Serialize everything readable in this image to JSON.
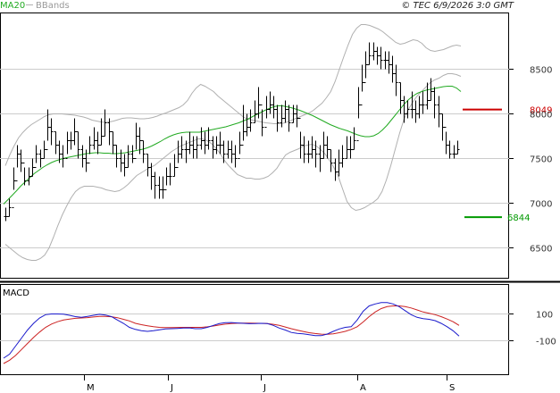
{
  "header": {
    "legend_ma": "MA20",
    "legend_bb": "BBands",
    "copyright": "© TEC 6/9/2026 3:0 GMT"
  },
  "macd_panel": {
    "label": "MACD"
  },
  "colors": {
    "price": "#000000",
    "ma20": "#22aa22",
    "bbands": "#b0b0b0",
    "resistance": "#cc0000",
    "support": "#009900",
    "macd_line": "#1a1acc",
    "signal_line": "#cc2222",
    "grid": "#cccccc",
    "border": "#000000"
  },
  "chart_data": [
    {
      "type": "line",
      "panel": "price",
      "y_ticks": [
        6500,
        7000,
        7500,
        8000,
        8500
      ],
      "x_ticks": [
        "M",
        "J",
        "J",
        "A",
        "S"
      ],
      "levels": [
        {
          "name": "resistance",
          "value": 8049,
          "label": "8049"
        },
        {
          "name": "support",
          "value": 6844,
          "label": "6844"
        }
      ],
      "series": [
        {
          "name": "MA20",
          "values": [
            6990,
            7040,
            7090,
            7140,
            7195,
            7240,
            7285,
            7330,
            7365,
            7400,
            7430,
            7455,
            7475,
            7490,
            7505,
            7515,
            7525,
            7535,
            7545,
            7555,
            7560,
            7565,
            7565,
            7560,
            7560,
            7555,
            7555,
            7560,
            7565,
            7575,
            7585,
            7595,
            7605,
            7620,
            7640,
            7665,
            7690,
            7720,
            7745,
            7765,
            7780,
            7790,
            7795,
            7795,
            7795,
            7795,
            7805,
            7815,
            7825,
            7835,
            7845,
            7855,
            7870,
            7885,
            7900,
            7920,
            7940,
            7965,
            7990,
            8015,
            8040,
            8060,
            8080,
            8090,
            8090,
            8080,
            8070,
            8055,
            8040,
            8020,
            8000,
            7980,
            7955,
            7930,
            7905,
            7880,
            7860,
            7840,
            7825,
            7810,
            7790,
            7770,
            7755,
            7745,
            7745,
            7755,
            7780,
            7820,
            7870,
            7930,
            7990,
            8050,
            8110,
            8160,
            8200,
            8230,
            8250,
            8265,
            8275,
            8285,
            8295,
            8305,
            8310,
            8310,
            8290,
            8250
          ]
        },
        {
          "name": "BBands",
          "values": [
            6540,
            6500,
            6460,
            6420,
            6390,
            6370,
            6360,
            6360,
            6380,
            6420,
            6500,
            6620,
            6750,
            6870,
            6970,
            7060,
            7130,
            7170,
            7190,
            7190,
            7190,
            7180,
            7170,
            7150,
            7140,
            7130,
            7140,
            7170,
            7210,
            7260,
            7310,
            7340,
            7370,
            7400,
            7420,
            7460,
            7500,
            7540,
            7580,
            7610,
            7640,
            7660,
            7680,
            7700,
            7720,
            7720,
            7700,
            7670,
            7620,
            7560,
            7480,
            7420,
            7370,
            7320,
            7300,
            7280,
            7280,
            7270,
            7270,
            7280,
            7300,
            7340,
            7390,
            7470,
            7540,
            7570,
            7590,
            7610,
            7640,
            7650,
            7660,
            7640,
            7600,
            7550,
            7480,
            7400,
            7300,
            7160,
            7020,
            6950,
            6920,
            6930,
            6950,
            6980,
            7010,
            7050,
            7130,
            7260,
            7420,
            7600,
            7780,
            7940,
            8050,
            8130,
            8200,
            8250,
            8300,
            8350,
            8380,
            8400,
            8430,
            8450,
            8450,
            8440,
            8420
          ]
        },
        {
          "name": "BBands upper",
          "values": [
            7420,
            7540,
            7640,
            7730,
            7790,
            7840,
            7880,
            7910,
            7940,
            7970,
            7990,
            8000,
            8000,
            8000,
            7995,
            7990,
            7985,
            7975,
            7965,
            7950,
            7930,
            7920,
            7910,
            7905,
            7910,
            7920,
            7935,
            7950,
            7955,
            7955,
            7950,
            7945,
            7945,
            7950,
            7960,
            7975,
            7995,
            8010,
            8030,
            8050,
            8070,
            8100,
            8150,
            8230,
            8290,
            8330,
            8310,
            8280,
            8250,
            8200,
            8160,
            8120,
            8080,
            8040,
            8000,
            7960,
            7940,
            7930,
            7920,
            7910,
            7900,
            7895,
            7890,
            7890,
            7895,
            7910,
            7930,
            7950,
            7970,
            7990,
            8010,
            8040,
            8080,
            8120,
            8180,
            8250,
            8360,
            8500,
            8640,
            8770,
            8890,
            8960,
            9000,
            9000,
            8990,
            8970,
            8950,
            8920,
            8880,
            8840,
            8800,
            8780,
            8790,
            8810,
            8830,
            8820,
            8790,
            8740,
            8710,
            8700,
            8710,
            8720,
            8740,
            8760,
            8770,
            8760
          ]
        },
        {
          "name": "close",
          "values": [
            6850,
            6950,
            7250,
            7550,
            7450,
            7250,
            7300,
            7400,
            7550,
            7500,
            7600,
            7850,
            7800,
            7650,
            7550,
            7500,
            7700,
            7700,
            7800,
            7600,
            7500,
            7450,
            7650,
            7700,
            7650,
            7750,
            7900,
            7800,
            7650,
            7500,
            7450,
            7400,
            7550,
            7500,
            7750,
            7700,
            7550,
            7400,
            7300,
            7200,
            7150,
            7150,
            7300,
            7300,
            7400,
            7550,
            7600,
            7600,
            7650,
            7600,
            7650,
            7700,
            7650,
            7700,
            7600,
            7650,
            7650,
            7550,
            7600,
            7550,
            7500,
            7650,
            7800,
            7850,
            7900,
            8000,
            8100,
            7850,
            8050,
            8100,
            8050,
            7900,
            7950,
            8050,
            7900,
            8000,
            7950,
            7650,
            7550,
            7550,
            7600,
            7550,
            7500,
            7650,
            7600,
            7450,
            7350,
            7450,
            7500,
            7600,
            7600,
            7700,
            8100,
            8350,
            8550,
            8650,
            8700,
            8650,
            8600,
            8600,
            8550,
            8450,
            8350,
            8150,
            8000,
            8050,
            8050,
            8000,
            8100,
            8100,
            8150,
            8250,
            8100,
            8000,
            7850,
            7650,
            7550,
            7550,
            7600
          ]
        },
        {
          "name": "high",
          "values": [
            6950,
            7050,
            7400,
            7650,
            7600,
            7400,
            7400,
            7500,
            7650,
            7600,
            7700,
            8050,
            7950,
            7800,
            7700,
            7650,
            7800,
            7800,
            7950,
            7800,
            7650,
            7600,
            7750,
            7850,
            7800,
            7950,
            8050,
            7950,
            7800,
            7650,
            7600,
            7550,
            7650,
            7650,
            7900,
            7850,
            7700,
            7550,
            7450,
            7350,
            7300,
            7300,
            7400,
            7450,
            7550,
            7700,
            7750,
            7700,
            7800,
            7750,
            7750,
            7850,
            7800,
            7850,
            7750,
            7750,
            7800,
            7700,
            7700,
            7700,
            7650,
            7800,
            8100,
            8000,
            8050,
            8150,
            8300,
            8050,
            8200,
            8250,
            8200,
            8100,
            8100,
            8150,
            8100,
            8100,
            8100,
            7800,
            7750,
            7700,
            7750,
            7700,
            7650,
            7800,
            7750,
            7600,
            7500,
            7600,
            7650,
            7750,
            7750,
            7850,
            8300,
            8550,
            8700,
            8800,
            8800,
            8750,
            8750,
            8700,
            8700,
            8650,
            8550,
            8350,
            8200,
            8150,
            8250,
            8150,
            8200,
            8250,
            8350,
            8400,
            8300,
            8200,
            8000,
            7800,
            7700,
            7650,
            7700
          ]
        },
        {
          "name": "low",
          "values": [
            6800,
            6850,
            7150,
            7400,
            7350,
            7200,
            7200,
            7300,
            7450,
            7400,
            7500,
            7700,
            7650,
            7550,
            7450,
            7400,
            7550,
            7600,
            7650,
            7500,
            7400,
            7350,
            7550,
            7600,
            7550,
            7650,
            7750,
            7650,
            7550,
            7400,
            7350,
            7300,
            7400,
            7450,
            7600,
            7550,
            7450,
            7300,
            7150,
            7050,
            7050,
            7050,
            7200,
            7200,
            7300,
            7450,
            7500,
            7450,
            7550,
            7500,
            7500,
            7600,
            7550,
            7600,
            7500,
            7550,
            7550,
            7450,
            7500,
            7450,
            7400,
            7550,
            7700,
            7750,
            7800,
            7900,
            7950,
            7750,
            7950,
            8000,
            7950,
            7800,
            7850,
            7900,
            7800,
            7900,
            7850,
            7500,
            7450,
            7450,
            7500,
            7400,
            7350,
            7500,
            7500,
            7350,
            7250,
            7300,
            7400,
            7500,
            7500,
            7600,
            7950,
            8250,
            8400,
            8550,
            8600,
            8550,
            8500,
            8500,
            8450,
            8350,
            8200,
            8000,
            7900,
            7950,
            7950,
            7900,
            7950,
            8000,
            8050,
            8150,
            7950,
            7850,
            7700,
            7550,
            7500,
            7500,
            7550
          ]
        }
      ]
    },
    {
      "type": "line",
      "panel": "macd",
      "y_ticks": [
        100,
        -100
      ],
      "series": [
        {
          "name": "MACD",
          "values": [
            -230,
            -200,
            -140,
            -80,
            -20,
            30,
            70,
            95,
            100,
            100,
            98,
            90,
            80,
            75,
            82,
            90,
            97,
            92,
            80,
            55,
            30,
            0,
            -15,
            -25,
            -30,
            -25,
            -18,
            -12,
            -10,
            -8,
            -5,
            -4,
            -10,
            -10,
            0,
            15,
            28,
            35,
            36,
            33,
            30,
            27,
            28,
            30,
            28,
            15,
            -5,
            -20,
            -38,
            -45,
            -48,
            -55,
            -62,
            -62,
            -50,
            -30,
            -12,
            0,
            5,
            55,
            120,
            160,
            175,
            185,
            185,
            175,
            155,
            125,
            95,
            75,
            65,
            60,
            50,
            30,
            5,
            -25,
            -65
          ]
        },
        {
          "name": "Signal",
          "values": [
            -270,
            -245,
            -210,
            -165,
            -120,
            -75,
            -35,
            0,
            25,
            42,
            55,
            62,
            67,
            70,
            73,
            77,
            82,
            82,
            79,
            72,
            60,
            48,
            30,
            20,
            12,
            5,
            0,
            -2,
            -2,
            -1,
            0,
            0,
            0,
            0,
            4,
            10,
            17,
            24,
            28,
            31,
            32,
            32,
            31,
            30,
            28,
            23,
            15,
            3,
            -10,
            -21,
            -31,
            -40,
            -46,
            -51,
            -52,
            -48,
            -40,
            -30,
            -15,
            5,
            40,
            80,
            115,
            140,
            155,
            160,
            160,
            155,
            145,
            130,
            115,
            105,
            95,
            80,
            62,
            42,
            15
          ]
        }
      ]
    }
  ]
}
